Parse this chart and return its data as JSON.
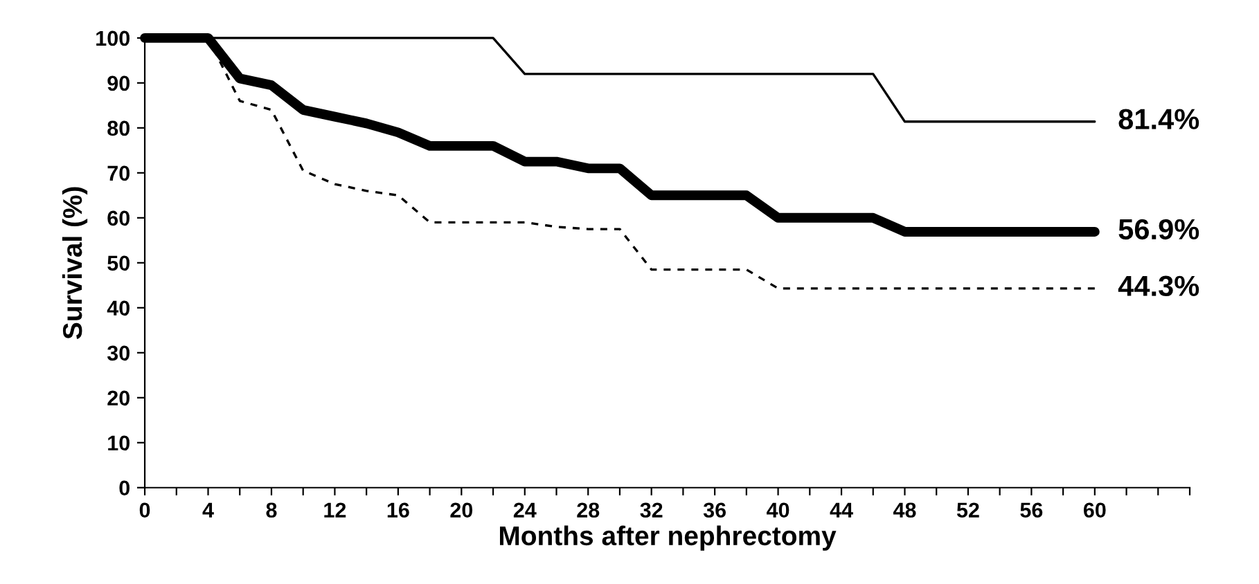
{
  "chart_data": {
    "type": "line",
    "xlabel": "Months after nephrectomy",
    "ylabel": "Survival (%)",
    "xlim": [
      0,
      66
    ],
    "ylim": [
      0,
      100
    ],
    "xticks": [
      0,
      {
        "value": 2,
        "label": null
      },
      4,
      {
        "value": 6,
        "label": null
      },
      8,
      {
        "value": 10,
        "label": null
      },
      12,
      {
        "value": 14,
        "label": null
      },
      16,
      {
        "value": 18,
        "label": null
      },
      20,
      {
        "value": 22,
        "label": null
      },
      24,
      {
        "value": 26,
        "label": null
      },
      28,
      {
        "value": 30,
        "label": null
      },
      32,
      {
        "value": 34,
        "label": null
      },
      36,
      {
        "value": 38,
        "label": null
      },
      40,
      {
        "value": 42,
        "label": null
      },
      44,
      {
        "value": 46,
        "label": null
      },
      48,
      {
        "value": 50,
        "label": null
      },
      52,
      {
        "value": 54,
        "label": null
      },
      56,
      {
        "value": 58,
        "label": null
      },
      60,
      {
        "value": 62,
        "label": null
      },
      {
        "value": 64,
        "label": null
      },
      {
        "value": 66,
        "label": null
      }
    ],
    "yticks": [
      0,
      10,
      20,
      30,
      40,
      50,
      60,
      70,
      80,
      90,
      100
    ],
    "grid": false,
    "marker": "none",
    "series": [
      {
        "color": "#000000",
        "line_style": "solid",
        "x": [
          0,
          22,
          24,
          46,
          48,
          60
        ],
        "values": [
          100,
          100,
          92,
          92,
          81.4,
          81.4
        ]
      },
      {
        "color": "#000000",
        "line_style": "solid",
        "x": [
          0,
          4,
          6,
          8,
          10,
          12,
          14,
          16,
          18,
          20,
          22,
          24,
          26,
          28,
          30,
          32,
          34,
          36,
          38,
          40,
          42,
          44,
          46,
          48,
          50,
          52,
          54,
          56,
          58,
          60
        ],
        "values": [
          100,
          100,
          91,
          89.5,
          84,
          82.5,
          81,
          79,
          76,
          76,
          76,
          72.5,
          72.5,
          71,
          71,
          65,
          65,
          65,
          65,
          60,
          60,
          60,
          60,
          56.9,
          56.9,
          56.9,
          56.9,
          56.9,
          56.9,
          56.9
        ]
      },
      {
        "color": "#000000",
        "line_style": "dashed",
        "x": [
          0,
          4,
          6,
          8,
          10,
          12,
          14,
          16,
          18,
          20,
          22,
          24,
          26,
          28,
          30,
          32,
          34,
          36,
          38,
          40,
          60
        ],
        "values": [
          100,
          100,
          86,
          84,
          70.5,
          67.5,
          66,
          65,
          59,
          59,
          59,
          59,
          58,
          57.5,
          57.5,
          48.5,
          48.5,
          48.5,
          48.5,
          44.3,
          44.3
        ]
      }
    ],
    "annotations": [
      "81.4%",
      "56.9%",
      "44.3%"
    ]
  }
}
